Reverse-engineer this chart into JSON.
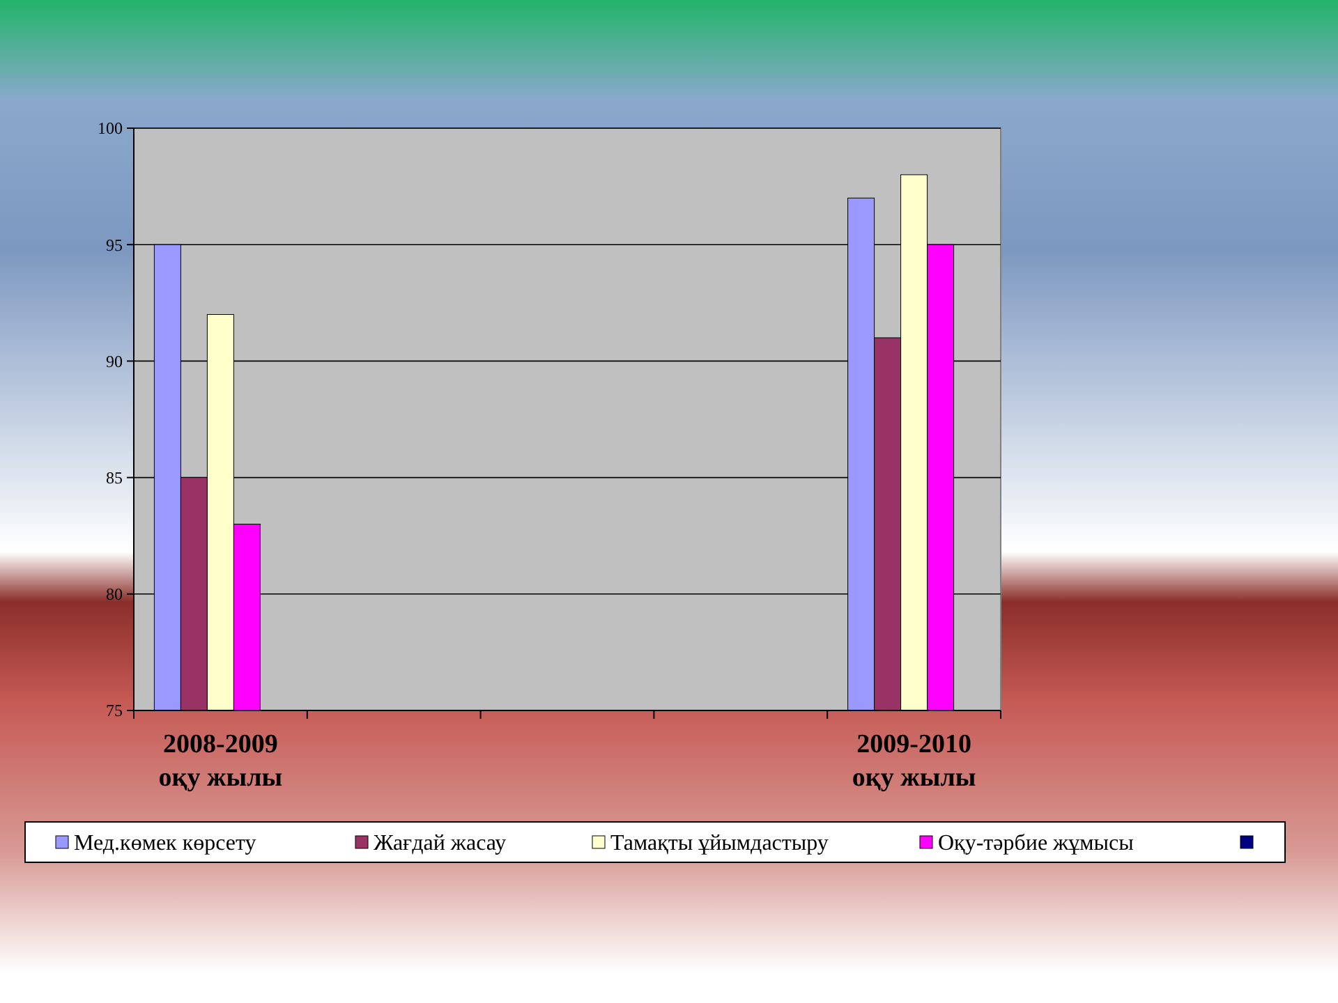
{
  "chart_data": {
    "type": "bar",
    "categories": [
      "2008-2009\nоқу жылы",
      null,
      null,
      null,
      "2009-2010\nоқу жылы"
    ],
    "series": [
      {
        "name": "Мед.көмек көрсету",
        "color": "#9999ff",
        "values": [
          95,
          null,
          null,
          null,
          97
        ]
      },
      {
        "name": "Жағдай жасау",
        "color": "#993366",
        "values": [
          85,
          null,
          null,
          null,
          91
        ]
      },
      {
        "name": "Тамақты ұйымдастыру",
        "color": "#ffffcc",
        "values": [
          92,
          null,
          null,
          null,
          98
        ]
      },
      {
        "name": "Оқу-тәрбие жұмысы",
        "color": "#ff00ff",
        "values": [
          83,
          null,
          null,
          null,
          95
        ]
      },
      {
        "color": "#000080",
        "values": [
          null,
          null,
          null,
          null,
          null
        ]
      }
    ],
    "ylim": [
      75,
      100
    ],
    "yticks": [
      75,
      80,
      85,
      90,
      95,
      100
    ],
    "grid": "y",
    "legend": "bottom"
  }
}
